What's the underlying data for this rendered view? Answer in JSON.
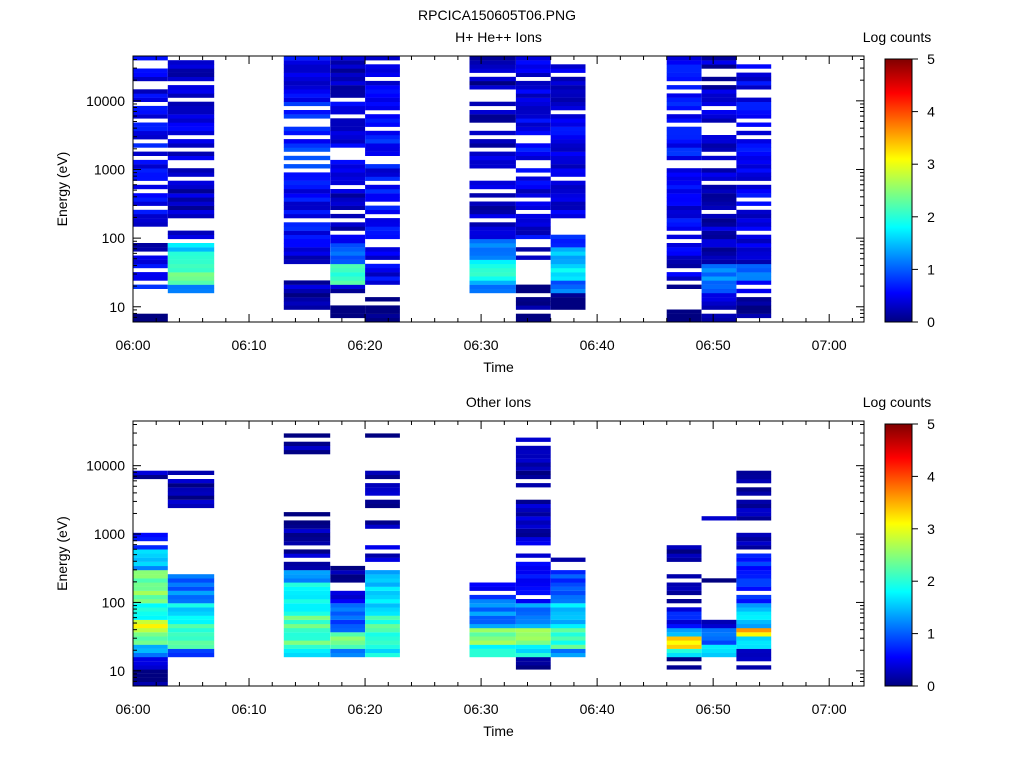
{
  "figure_title": "RPCICA150605T06.PNG",
  "chart_data": [
    {
      "type": "heatmap",
      "title": "H+ He++ Ions",
      "xlabel": "Time",
      "ylabel": "Energy (eV)",
      "y_scale": "log",
      "x_ticks": [
        "06:00",
        "06:10",
        "06:20",
        "06:30",
        "06:40",
        "06:50",
        "07:00"
      ],
      "xlim": [
        "06:00",
        "07:03"
      ],
      "y_ticks": [
        10,
        100,
        1000,
        10000
      ],
      "y_tick_labels": [
        "10",
        "100",
        "1000",
        "10000"
      ],
      "ylim": [
        6,
        45000
      ],
      "colorbar": {
        "label": "Log counts",
        "range": [
          0,
          5
        ],
        "ticks": [
          "0",
          "1",
          "2",
          "3",
          "4",
          "5"
        ]
      },
      "columns": [
        {
          "start": "06:00",
          "end": "06:03"
        },
        {
          "start": "06:03",
          "end": "06:07"
        },
        {
          "start": "06:13",
          "end": "06:17"
        },
        {
          "start": "06:17",
          "end": "06:20"
        },
        {
          "start": "06:20",
          "end": "06:23"
        },
        {
          "start": "06:29",
          "end": "06:33"
        },
        {
          "start": "06:33",
          "end": "06:36"
        },
        {
          "start": "06:36",
          "end": "06:39"
        },
        {
          "start": "06:46",
          "end": "06:49"
        },
        {
          "start": "06:49",
          "end": "06:52"
        },
        {
          "start": "06:52",
          "end": "06:55"
        }
      ],
      "energy_profiles": [
        [
          [
            6,
            10,
            0.0
          ],
          [
            16,
            40,
            0.7
          ],
          [
            40,
            60,
            0.5
          ],
          [
            60,
            100,
            0.35
          ],
          [
            100,
            1000,
            0.55
          ],
          [
            1000,
            10000,
            0.6
          ],
          [
            10000,
            45000,
            0.5
          ]
        ],
        [
          [
            16,
            20,
            1.0
          ],
          [
            20,
            40,
            2.3
          ],
          [
            40,
            60,
            2.0
          ],
          [
            60,
            90,
            1.6
          ],
          [
            100,
            1000,
            0.3
          ],
          [
            1000,
            10000,
            0.45
          ],
          [
            10000,
            40000,
            0.3
          ]
        ],
        [
          [
            9,
            15,
            0.1
          ],
          [
            15,
            25,
            0.3
          ],
          [
            40,
            100,
            0.4
          ],
          [
            100,
            1000,
            0.6
          ],
          [
            1000,
            10000,
            0.8
          ],
          [
            10000,
            45000,
            0.55
          ]
        ],
        [
          [
            6,
            10,
            0.0
          ],
          [
            15,
            20,
            0.3
          ],
          [
            20,
            40,
            2.1
          ],
          [
            40,
            80,
            1.0
          ],
          [
            80,
            1000,
            0.35
          ],
          [
            1000,
            10000,
            0.45
          ],
          [
            10000,
            45000,
            0.3
          ]
        ],
        [
          [
            6,
            15,
            0.0
          ],
          [
            20,
            50,
            0.5
          ],
          [
            50,
            100,
            0.4
          ],
          [
            100,
            1000,
            0.6
          ],
          [
            1000,
            10000,
            0.7
          ],
          [
            10000,
            45000,
            0.55
          ]
        ],
        [
          [
            15,
            25,
            1.3
          ],
          [
            25,
            50,
            2.0
          ],
          [
            50,
            100,
            1.2
          ],
          [
            100,
            1000,
            0.35
          ],
          [
            1000,
            10000,
            0.3
          ],
          [
            10000,
            45000,
            0.2
          ]
        ],
        [
          [
            6,
            25,
            0.0
          ],
          [
            40,
            100,
            0.2
          ],
          [
            100,
            1000,
            0.5
          ],
          [
            1000,
            10000,
            0.55
          ],
          [
            10000,
            45000,
            0.45
          ]
        ],
        [
          [
            6,
            15,
            0.0
          ],
          [
            15,
            25,
            1.2
          ],
          [
            25,
            45,
            1.8
          ],
          [
            45,
            70,
            1.5
          ],
          [
            70,
            120,
            0.7
          ],
          [
            180,
            1000,
            0.4
          ],
          [
            1000,
            10000,
            0.5
          ],
          [
            10000,
            40000,
            0.35
          ]
        ],
        [
          [
            6,
            10,
            0.0
          ],
          [
            15,
            25,
            0.2
          ],
          [
            25,
            50,
            0.4
          ],
          [
            50,
            100,
            0.5
          ],
          [
            100,
            1000,
            0.55
          ],
          [
            1000,
            10000,
            0.65
          ],
          [
            10000,
            45000,
            0.55
          ]
        ],
        [
          [
            6,
            15,
            0.3
          ],
          [
            15,
            25,
            0.9
          ],
          [
            25,
            40,
            1.2
          ],
          [
            40,
            100,
            0.3
          ],
          [
            100,
            1000,
            0.3
          ],
          [
            1000,
            10000,
            0.35
          ],
          [
            10000,
            45000,
            0.3
          ]
        ],
        [
          [
            6,
            15,
            0.1
          ],
          [
            15,
            25,
            0.6
          ],
          [
            25,
            45,
            1.3
          ],
          [
            45,
            100,
            0.4
          ],
          [
            100,
            1000,
            0.5
          ],
          [
            1000,
            10000,
            0.55
          ],
          [
            10000,
            45000,
            0.5
          ]
        ]
      ]
    },
    {
      "type": "heatmap",
      "title": "Other Ions",
      "xlabel": "Time",
      "ylabel": "Energy (eV)",
      "y_scale": "log",
      "x_ticks": [
        "06:00",
        "06:10",
        "06:20",
        "06:30",
        "06:40",
        "06:50",
        "07:00"
      ],
      "xlim": [
        "06:00",
        "07:03"
      ],
      "y_ticks": [
        10,
        100,
        1000,
        10000
      ],
      "y_tick_labels": [
        "10",
        "100",
        "1000",
        "10000"
      ],
      "ylim": [
        6,
        45000
      ],
      "colorbar": {
        "label": "Log counts",
        "range": [
          0,
          5
        ],
        "ticks": [
          "0",
          "1",
          "2",
          "3",
          "4",
          "5"
        ]
      },
      "columns": [
        {
          "start": "06:00",
          "end": "06:03"
        },
        {
          "start": "06:03",
          "end": "06:07"
        },
        {
          "start": "06:13",
          "end": "06:17"
        },
        {
          "start": "06:17",
          "end": "06:20"
        },
        {
          "start": "06:20",
          "end": "06:23"
        },
        {
          "start": "06:29",
          "end": "06:33"
        },
        {
          "start": "06:33",
          "end": "06:36"
        },
        {
          "start": "06:36",
          "end": "06:39"
        },
        {
          "start": "06:46",
          "end": "06:49"
        },
        {
          "start": "06:49",
          "end": "06:52"
        },
        {
          "start": "06:52",
          "end": "06:55"
        }
      ],
      "energy_profiles": [
        [
          [
            6,
            10,
            0.0
          ],
          [
            10,
            15,
            0.3
          ],
          [
            15,
            25,
            1.4
          ],
          [
            25,
            35,
            2.3
          ],
          [
            35,
            55,
            3.0
          ],
          [
            55,
            100,
            1.8
          ],
          [
            100,
            300,
            2.5
          ],
          [
            300,
            600,
            1.5
          ],
          [
            600,
            1000,
            0.6
          ],
          [
            6000,
            8000,
            0.2
          ]
        ],
        [
          [
            16,
            20,
            1.0
          ],
          [
            20,
            50,
            2.2
          ],
          [
            50,
            100,
            1.8
          ],
          [
            100,
            260,
            1.2
          ],
          [
            2500,
            8000,
            0.2
          ]
        ],
        [
          [
            15,
            20,
            1.7
          ],
          [
            20,
            60,
            2.3
          ],
          [
            60,
            200,
            1.9
          ],
          [
            200,
            300,
            1.2
          ],
          [
            300,
            500,
            0.4
          ],
          [
            500,
            2000,
            0.2
          ],
          [
            15000,
            30000,
            0.15
          ]
        ],
        [
          [
            15,
            20,
            1.2
          ],
          [
            20,
            35,
            2.4
          ],
          [
            35,
            100,
            1.1
          ],
          [
            100,
            200,
            0.4
          ],
          [
            200,
            400,
            0.2
          ],
          [
            1600,
            1700,
            0.2
          ]
        ],
        [
          [
            15,
            20,
            1.8
          ],
          [
            20,
            60,
            2.2
          ],
          [
            60,
            300,
            1.6
          ],
          [
            300,
            700,
            0.35
          ],
          [
            1000,
            8000,
            0.2
          ],
          [
            25000,
            28000,
            0.15
          ]
        ],
        [
          [
            15,
            25,
            1.9
          ],
          [
            25,
            40,
            2.5
          ],
          [
            40,
            120,
            1.3
          ],
          [
            120,
            200,
            0.7
          ]
        ],
        [
          [
            10,
            15,
            0.0
          ],
          [
            15,
            25,
            1.9
          ],
          [
            25,
            45,
            2.7
          ],
          [
            45,
            100,
            1.3
          ],
          [
            100,
            800,
            0.6
          ],
          [
            800,
            3000,
            0.3
          ],
          [
            5000,
            26000,
            0.15
          ]
        ],
        [
          [
            15,
            20,
            1.3
          ],
          [
            20,
            45,
            2.2
          ],
          [
            45,
            100,
            1.6
          ],
          [
            100,
            300,
            1.0
          ],
          [
            400,
            450,
            0.2
          ]
        ],
        [
          [
            10,
            15,
            0.0
          ],
          [
            15,
            20,
            1.8
          ],
          [
            20,
            30,
            3.2
          ],
          [
            30,
            45,
            1.4
          ],
          [
            45,
            100,
            0.6
          ],
          [
            100,
            250,
            0.2
          ],
          [
            400,
            900,
            0.2
          ],
          [
            9500,
            10000,
            0.15
          ]
        ],
        [
          [
            15,
            25,
            1.7
          ],
          [
            25,
            45,
            1.0
          ],
          [
            45,
            60,
            0.4
          ],
          [
            200,
            230,
            0.2
          ],
          [
            1500,
            1700,
            0.2
          ]
        ],
        [
          [
            10,
            20,
            0.2
          ],
          [
            20,
            30,
            1.6
          ],
          [
            30,
            45,
            3.4
          ],
          [
            45,
            100,
            1.6
          ],
          [
            100,
            500,
            0.8
          ],
          [
            500,
            1000,
            0.3
          ],
          [
            1500,
            9000,
            0.2
          ]
        ]
      ]
    }
  ]
}
